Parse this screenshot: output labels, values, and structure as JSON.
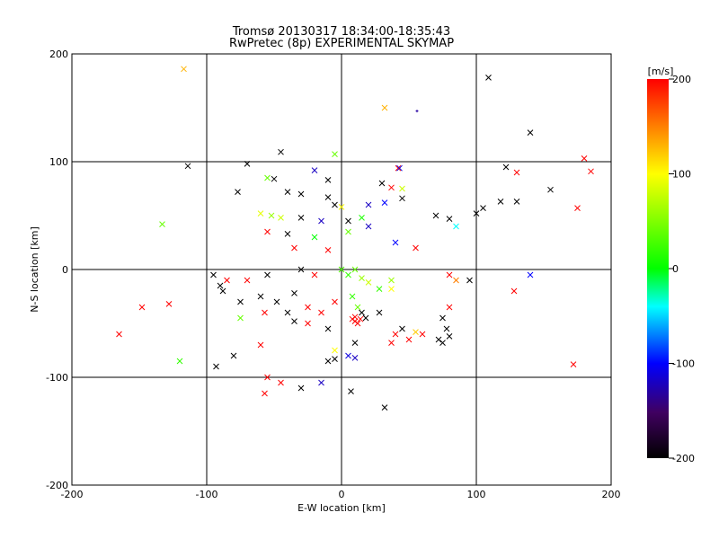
{
  "chart_data": {
    "type": "scatter",
    "title": "Tromsø 20130317 18:34:00-18:35:43",
    "subtitle": "RwPretec (8p) EXPERIMENTAL SKYMAP",
    "xlabel": "E-W location [km]",
    "ylabel": "N-S location [km]",
    "xlim": [
      -200,
      200
    ],
    "ylim": [
      -200,
      200
    ],
    "x_ticks": [
      "-200",
      "-100",
      "0",
      "100",
      "200"
    ],
    "y_ticks": [
      "-200",
      "-100",
      "0",
      "100",
      "200"
    ],
    "grid": true,
    "colorbar": {
      "label": "[m/s]",
      "min": -200,
      "max": 200,
      "ticks": [
        "200",
        "100",
        "0",
        "-100",
        "-200"
      ],
      "colormap": "black-purple-blue-cyan-green-yellow-red"
    },
    "markers": [
      {
        "x": -117,
        "y": 186,
        "v": 130,
        "m": "x"
      },
      {
        "x": 109,
        "y": 178,
        "v": -200,
        "m": "x"
      },
      {
        "x": 140,
        "y": 127,
        "v": -200,
        "m": "x"
      },
      {
        "x": 32,
        "y": 150,
        "v": 130,
        "m": "x"
      },
      {
        "x": 56,
        "y": 147,
        "v": -130,
        "m": "+"
      },
      {
        "x": 180,
        "y": 103,
        "v": 200,
        "m": "x"
      },
      {
        "x": 185,
        "y": 91,
        "v": 200,
        "m": "x"
      },
      {
        "x": 175,
        "y": 57,
        "v": 200,
        "m": "x"
      },
      {
        "x": 122,
        "y": 95,
        "v": -200,
        "m": "x"
      },
      {
        "x": 130,
        "y": 90,
        "v": 200,
        "m": "x"
      },
      {
        "x": 155,
        "y": 74,
        "v": -200,
        "m": "x"
      },
      {
        "x": 130,
        "y": 63,
        "v": -200,
        "m": "x"
      },
      {
        "x": 118,
        "y": 63,
        "v": -200,
        "m": "x"
      },
      {
        "x": -114,
        "y": 96,
        "v": -200,
        "m": "x"
      },
      {
        "x": -70,
        "y": 98,
        "v": -200,
        "m": "x"
      },
      {
        "x": -45,
        "y": 109,
        "v": -200,
        "m": "x"
      },
      {
        "x": -5,
        "y": 107,
        "v": 40,
        "m": "x"
      },
      {
        "x": 42,
        "y": 94,
        "v": 200,
        "m": "x"
      },
      {
        "x": 43,
        "y": 94,
        "v": -110,
        "m": "x"
      },
      {
        "x": -20,
        "y": 92,
        "v": -120,
        "m": "x"
      },
      {
        "x": -55,
        "y": 85,
        "v": 40,
        "m": "x"
      },
      {
        "x": -50,
        "y": 84,
        "v": -200,
        "m": "x"
      },
      {
        "x": -10,
        "y": 83,
        "v": -200,
        "m": "x"
      },
      {
        "x": 30,
        "y": 80,
        "v": -200,
        "m": "x"
      },
      {
        "x": 37,
        "y": 76,
        "v": 200,
        "m": "x"
      },
      {
        "x": 45,
        "y": 75,
        "v": 80,
        "m": "x"
      },
      {
        "x": -77,
        "y": 72,
        "v": -200,
        "m": "x"
      },
      {
        "x": -40,
        "y": 72,
        "v": -200,
        "m": "x"
      },
      {
        "x": -30,
        "y": 70,
        "v": -200,
        "m": "x"
      },
      {
        "x": -10,
        "y": 67,
        "v": -200,
        "m": "x"
      },
      {
        "x": -5,
        "y": 60,
        "v": -200,
        "m": "x"
      },
      {
        "x": 0,
        "y": 58,
        "v": 100,
        "m": "x"
      },
      {
        "x": 20,
        "y": 60,
        "v": -120,
        "m": "x"
      },
      {
        "x": 32,
        "y": 62,
        "v": -100,
        "m": "x"
      },
      {
        "x": 45,
        "y": 66,
        "v": -200,
        "m": "x"
      },
      {
        "x": -60,
        "y": 52,
        "v": 90,
        "m": "x"
      },
      {
        "x": -52,
        "y": 50,
        "v": 60,
        "m": "x"
      },
      {
        "x": -45,
        "y": 48,
        "v": 80,
        "m": "x"
      },
      {
        "x": -30,
        "y": 48,
        "v": -200,
        "m": "x"
      },
      {
        "x": -15,
        "y": 45,
        "v": -120,
        "m": "x"
      },
      {
        "x": 5,
        "y": 45,
        "v": -200,
        "m": "x"
      },
      {
        "x": 15,
        "y": 48,
        "v": 10,
        "m": "x"
      },
      {
        "x": 70,
        "y": 50,
        "v": -200,
        "m": "x"
      },
      {
        "x": 80,
        "y": 47,
        "v": -200,
        "m": "x"
      },
      {
        "x": 100,
        "y": 52,
        "v": -200,
        "m": "x"
      },
      {
        "x": 105,
        "y": 57,
        "v": -200,
        "m": "x"
      },
      {
        "x": 85,
        "y": 40,
        "v": -40,
        "m": "x"
      },
      {
        "x": -133,
        "y": 42,
        "v": 40,
        "m": "x"
      },
      {
        "x": -55,
        "y": 35,
        "v": 200,
        "m": "x"
      },
      {
        "x": -40,
        "y": 33,
        "v": -200,
        "m": "x"
      },
      {
        "x": -20,
        "y": 30,
        "v": 0,
        "m": "x"
      },
      {
        "x": 5,
        "y": 35,
        "v": 40,
        "m": "x"
      },
      {
        "x": 20,
        "y": 40,
        "v": -120,
        "m": "x"
      },
      {
        "x": 40,
        "y": 25,
        "v": -100,
        "m": "x"
      },
      {
        "x": 55,
        "y": 20,
        "v": 200,
        "m": "x"
      },
      {
        "x": -35,
        "y": 20,
        "v": 200,
        "m": "x"
      },
      {
        "x": -10,
        "y": 18,
        "v": 200,
        "m": "x"
      },
      {
        "x": -95,
        "y": -5,
        "v": -200,
        "m": "x"
      },
      {
        "x": -85,
        "y": -10,
        "v": 200,
        "m": "x"
      },
      {
        "x": -90,
        "y": -15,
        "v": -200,
        "m": "x"
      },
      {
        "x": -70,
        "y": -10,
        "v": 200,
        "m": "x"
      },
      {
        "x": -55,
        "y": -5,
        "v": -200,
        "m": "x"
      },
      {
        "x": -30,
        "y": 0,
        "v": -200,
        "m": "x"
      },
      {
        "x": -20,
        "y": -5,
        "v": 200,
        "m": "x"
      },
      {
        "x": 0,
        "y": 0,
        "v": 30,
        "m": "x"
      },
      {
        "x": 5,
        "y": -5,
        "v": 20,
        "m": "x"
      },
      {
        "x": 10,
        "y": 0,
        "v": 40,
        "m": "x"
      },
      {
        "x": 15,
        "y": -8,
        "v": 60,
        "m": "x"
      },
      {
        "x": 20,
        "y": -12,
        "v": 80,
        "m": "x"
      },
      {
        "x": 28,
        "y": -18,
        "v": 20,
        "m": "x"
      },
      {
        "x": 37,
        "y": -18,
        "v": 100,
        "m": "x"
      },
      {
        "x": 37,
        "y": -10,
        "v": 60,
        "m": "x"
      },
      {
        "x": 80,
        "y": -5,
        "v": 200,
        "m": "x"
      },
      {
        "x": 85,
        "y": -10,
        "v": 150,
        "m": "x"
      },
      {
        "x": 95,
        "y": -10,
        "v": -200,
        "m": "x"
      },
      {
        "x": 140,
        "y": -5,
        "v": -100,
        "m": "x"
      },
      {
        "x": 128,
        "y": -20,
        "v": 200,
        "m": "x"
      },
      {
        "x": -88,
        "y": -20,
        "v": -200,
        "m": "x"
      },
      {
        "x": -75,
        "y": -30,
        "v": -200,
        "m": "x"
      },
      {
        "x": -60,
        "y": -25,
        "v": -200,
        "m": "x"
      },
      {
        "x": -48,
        "y": -30,
        "v": -200,
        "m": "x"
      },
      {
        "x": -35,
        "y": -22,
        "v": -200,
        "m": "x"
      },
      {
        "x": -25,
        "y": -35,
        "v": 200,
        "m": "x"
      },
      {
        "x": -15,
        "y": -40,
        "v": 200,
        "m": "x"
      },
      {
        "x": -5,
        "y": -30,
        "v": 200,
        "m": "x"
      },
      {
        "x": 8,
        "y": -25,
        "v": 20,
        "m": "x"
      },
      {
        "x": 12,
        "y": -35,
        "v": 40,
        "m": "x"
      },
      {
        "x": 15,
        "y": -40,
        "v": -200,
        "m": "x"
      },
      {
        "x": 18,
        "y": -45,
        "v": -200,
        "m": "x"
      },
      {
        "x": 28,
        "y": -40,
        "v": -200,
        "m": "x"
      },
      {
        "x": -128,
        "y": -32,
        "v": 200,
        "m": "x"
      },
      {
        "x": -148,
        "y": -35,
        "v": 200,
        "m": "x"
      },
      {
        "x": -165,
        "y": -60,
        "v": 200,
        "m": "x"
      },
      {
        "x": -75,
        "y": -45,
        "v": 40,
        "m": "x"
      },
      {
        "x": -57,
        "y": -40,
        "v": 200,
        "m": "x"
      },
      {
        "x": -40,
        "y": -40,
        "v": -200,
        "m": "x"
      },
      {
        "x": -35,
        "y": -48,
        "v": -200,
        "m": "x"
      },
      {
        "x": -25,
        "y": -50,
        "v": 200,
        "m": "x"
      },
      {
        "x": -10,
        "y": -55,
        "v": -200,
        "m": "x"
      },
      {
        "x": 10,
        "y": -44,
        "v": 200,
        "m": "x"
      },
      {
        "x": 10,
        "y": -48,
        "v": 200,
        "m": "x"
      },
      {
        "x": 8,
        "y": -46,
        "v": 200,
        "m": "x"
      },
      {
        "x": 12,
        "y": -50,
        "v": 200,
        "m": "x"
      },
      {
        "x": 14,
        "y": -46,
        "v": 200,
        "m": "x"
      },
      {
        "x": 80,
        "y": -35,
        "v": 200,
        "m": "x"
      },
      {
        "x": 75,
        "y": -45,
        "v": -200,
        "m": "x"
      },
      {
        "x": 78,
        "y": -55,
        "v": -200,
        "m": "x"
      },
      {
        "x": 75,
        "y": -68,
        "v": -200,
        "m": "x"
      },
      {
        "x": 72,
        "y": -65,
        "v": -200,
        "m": "x"
      },
      {
        "x": 80,
        "y": -62,
        "v": -200,
        "m": "x"
      },
      {
        "x": 60,
        "y": -60,
        "v": 200,
        "m": "x"
      },
      {
        "x": 45,
        "y": -55,
        "v": -200,
        "m": "x"
      },
      {
        "x": 50,
        "y": -65,
        "v": 200,
        "m": "x"
      },
      {
        "x": 40,
        "y": -60,
        "v": 200,
        "m": "x"
      },
      {
        "x": 37,
        "y": -68,
        "v": 200,
        "m": "x"
      },
      {
        "x": 55,
        "y": -58,
        "v": 120,
        "m": "x"
      },
      {
        "x": 10,
        "y": -68,
        "v": -200,
        "m": "x"
      },
      {
        "x": -5,
        "y": -75,
        "v": 100,
        "m": "x"
      },
      {
        "x": -10,
        "y": -85,
        "v": -200,
        "m": "x"
      },
      {
        "x": -5,
        "y": -83,
        "v": -200,
        "m": "x"
      },
      {
        "x": 5,
        "y": -80,
        "v": -110,
        "m": "x"
      },
      {
        "x": 10,
        "y": -82,
        "v": -120,
        "m": "x"
      },
      {
        "x": -60,
        "y": -70,
        "v": 200,
        "m": "x"
      },
      {
        "x": -80,
        "y": -80,
        "v": -200,
        "m": "x"
      },
      {
        "x": -93,
        "y": -90,
        "v": -200,
        "m": "x"
      },
      {
        "x": -120,
        "y": -85,
        "v": 20,
        "m": "x"
      },
      {
        "x": -15,
        "y": -105,
        "v": -120,
        "m": "x"
      },
      {
        "x": -55,
        "y": -100,
        "v": 200,
        "m": "x"
      },
      {
        "x": -45,
        "y": -105,
        "v": 200,
        "m": "x"
      },
      {
        "x": -30,
        "y": -110,
        "v": -200,
        "m": "x"
      },
      {
        "x": -57,
        "y": -115,
        "v": 200,
        "m": "x"
      },
      {
        "x": 7,
        "y": -113,
        "v": -200,
        "m": "x"
      },
      {
        "x": 32,
        "y": -128,
        "v": -200,
        "m": "x"
      },
      {
        "x": 172,
        "y": -88,
        "v": 200,
        "m": "x"
      }
    ]
  }
}
